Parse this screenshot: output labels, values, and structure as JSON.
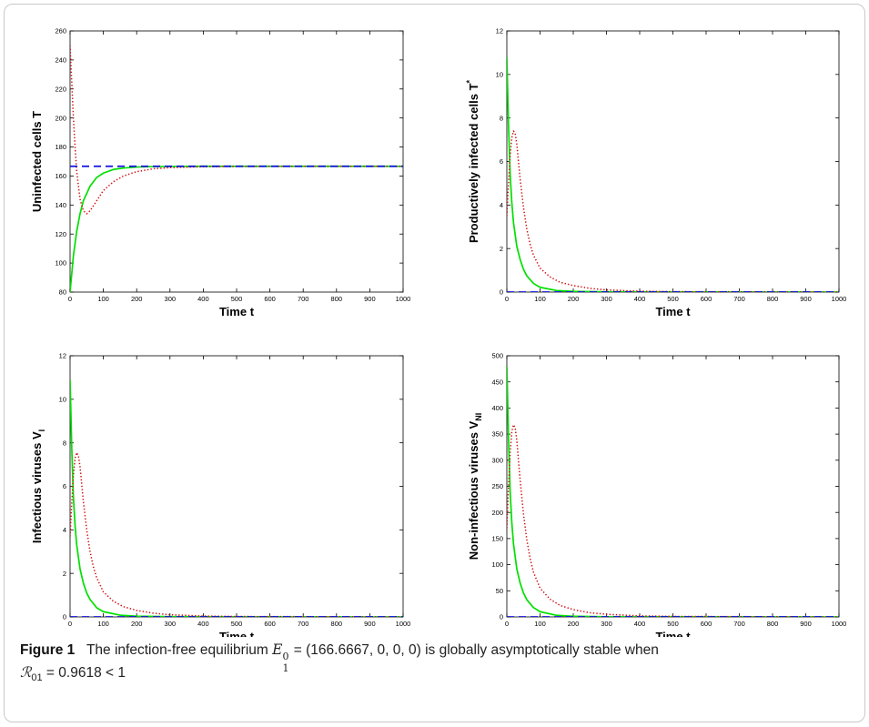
{
  "chart_data": [
    {
      "type": "line",
      "xlabel": "Time t",
      "ylabel": "Uninfected cells T",
      "xlim": [
        0,
        1000
      ],
      "ylim": [
        80,
        260
      ],
      "xticks": [
        0,
        100,
        200,
        300,
        400,
        500,
        600,
        700,
        800,
        900,
        1000
      ],
      "yticks": [
        80,
        100,
        120,
        140,
        160,
        180,
        200,
        220,
        240,
        260
      ],
      "series": [
        {
          "color": "#00e000",
          "style": "solid",
          "x": [
            0,
            10,
            20,
            30,
            40,
            60,
            80,
            100,
            130,
            160,
            200,
            250,
            300,
            400,
            500,
            1000
          ],
          "y": [
            80,
            105,
            122,
            134,
            143,
            153,
            159,
            162,
            164.5,
            165.5,
            166.2,
            166.5,
            166.6,
            166.7,
            166.7,
            166.7
          ]
        },
        {
          "color": "#d01010",
          "style": "dotted",
          "x": [
            0,
            5,
            10,
            15,
            20,
            30,
            40,
            50,
            60,
            80,
            100,
            130,
            160,
            200,
            250,
            300,
            400,
            500,
            600,
            1000
          ],
          "y": [
            250,
            225,
            200,
            180,
            163,
            144,
            136,
            134,
            136,
            143,
            150,
            156,
            160,
            163,
            165,
            165.8,
            166.4,
            166.6,
            166.7,
            166.7
          ]
        },
        {
          "color": "#1010e0",
          "style": "dashed",
          "x": [
            0,
            1000
          ],
          "y": [
            166.7,
            166.7
          ]
        }
      ]
    },
    {
      "type": "line",
      "xlabel": "Time t",
      "ylabel": "Productively infected cells T",
      "ylabel_sup": "*",
      "xlim": [
        0,
        1000
      ],
      "ylim": [
        0,
        12
      ],
      "xticks": [
        0,
        100,
        200,
        300,
        400,
        500,
        600,
        700,
        800,
        900,
        1000
      ],
      "yticks": [
        0,
        2,
        4,
        6,
        8,
        10,
        12
      ],
      "series": [
        {
          "color": "#00e000",
          "style": "solid",
          "x": [
            0,
            2,
            5,
            10,
            15,
            20,
            30,
            40,
            50,
            60,
            80,
            100,
            150,
            200,
            300,
            1000
          ],
          "y": [
            10.8,
            9.6,
            7.7,
            5.4,
            4.1,
            3.2,
            2.1,
            1.5,
            1.05,
            0.75,
            0.4,
            0.22,
            0.07,
            0.03,
            0.01,
            0
          ]
        },
        {
          "color": "#d01010",
          "style": "dotted",
          "x": [
            0,
            5,
            10,
            15,
            20,
            25,
            30,
            35,
            40,
            50,
            60,
            70,
            80,
            100,
            130,
            160,
            200,
            250,
            300,
            400,
            500,
            1000
          ],
          "y": [
            3.5,
            5.0,
            6.3,
            7.1,
            7.4,
            7.3,
            6.8,
            6.0,
            5.2,
            3.9,
            2.9,
            2.2,
            1.7,
            1.1,
            0.7,
            0.45,
            0.3,
            0.17,
            0.1,
            0.04,
            0.02,
            0
          ]
        },
        {
          "color": "#1010e0",
          "style": "dashed",
          "x": [
            0,
            1000
          ],
          "y": [
            0,
            0
          ]
        }
      ]
    },
    {
      "type": "line",
      "xlabel": "Time t",
      "ylabel": "Infectious viruses V",
      "ylabel_sub": "I",
      "xlim": [
        0,
        1000
      ],
      "ylim": [
        0,
        12
      ],
      "xticks": [
        0,
        100,
        200,
        300,
        400,
        500,
        600,
        700,
        800,
        900,
        1000
      ],
      "yticks": [
        0,
        2,
        4,
        6,
        8,
        10,
        12
      ],
      "series": [
        {
          "color": "#00e000",
          "style": "solid",
          "x": [
            0,
            2,
            5,
            10,
            15,
            20,
            30,
            40,
            50,
            60,
            80,
            100,
            150,
            200,
            300,
            1000
          ],
          "y": [
            10.9,
            9.7,
            7.8,
            5.5,
            4.2,
            3.3,
            2.2,
            1.55,
            1.1,
            0.8,
            0.42,
            0.24,
            0.08,
            0.03,
            0.01,
            0
          ]
        },
        {
          "color": "#d01010",
          "style": "dotted",
          "x": [
            0,
            5,
            10,
            15,
            20,
            25,
            30,
            35,
            40,
            50,
            60,
            70,
            80,
            100,
            130,
            160,
            200,
            250,
            300,
            400,
            500,
            1000
          ],
          "y": [
            3.7,
            5.2,
            6.5,
            7.3,
            7.55,
            7.4,
            6.9,
            6.1,
            5.3,
            4.0,
            3.0,
            2.3,
            1.8,
            1.15,
            0.72,
            0.47,
            0.3,
            0.17,
            0.1,
            0.04,
            0.02,
            0
          ]
        },
        {
          "color": "#1010e0",
          "style": "dashed",
          "x": [
            0,
            1000
          ],
          "y": [
            0,
            0
          ]
        }
      ]
    },
    {
      "type": "line",
      "xlabel": "Time t",
      "ylabel": "Non-infectious viruses V",
      "ylabel_sub": "NI",
      "xlim": [
        0,
        1000
      ],
      "ylim": [
        0,
        500
      ],
      "xticks": [
        0,
        100,
        200,
        300,
        400,
        500,
        600,
        700,
        800,
        900,
        1000
      ],
      "yticks": [
        0,
        50,
        100,
        150,
        200,
        250,
        300,
        350,
        400,
        450,
        500
      ],
      "series": [
        {
          "color": "#00e000",
          "style": "solid",
          "x": [
            0,
            2,
            5,
            10,
            15,
            20,
            30,
            40,
            50,
            60,
            80,
            100,
            150,
            200,
            300,
            1000
          ],
          "y": [
            480,
            430,
            340,
            240,
            180,
            140,
            92,
            65,
            46,
            33,
            18,
            10,
            3,
            1.2,
            0.3,
            0
          ]
        },
        {
          "color": "#d01010",
          "style": "dotted",
          "x": [
            0,
            5,
            10,
            15,
            20,
            25,
            30,
            35,
            40,
            50,
            60,
            70,
            80,
            100,
            130,
            160,
            200,
            250,
            300,
            400,
            500,
            1000
          ],
          "y": [
            170,
            250,
            315,
            355,
            368,
            362,
            338,
            300,
            262,
            198,
            148,
            112,
            86,
            55,
            34,
            22,
            14,
            8,
            5,
            2,
            1,
            0
          ]
        },
        {
          "color": "#1010e0",
          "style": "dashed",
          "x": [
            0,
            1000
          ],
          "y": [
            0,
            0
          ]
        }
      ]
    }
  ],
  "caption": {
    "label": "Figure 1",
    "text_before": "The infection-free equilibrium",
    "eq_symbol": "E",
    "eq_sub": "1",
    "eq_sup": "0",
    "eq_value": " = (166.6667, 0, 0, 0) is globally asymptotically stable when",
    "r_symbol": "ℛ",
    "r_sub": "01",
    "r_value": " = 0.9618 < 1"
  }
}
